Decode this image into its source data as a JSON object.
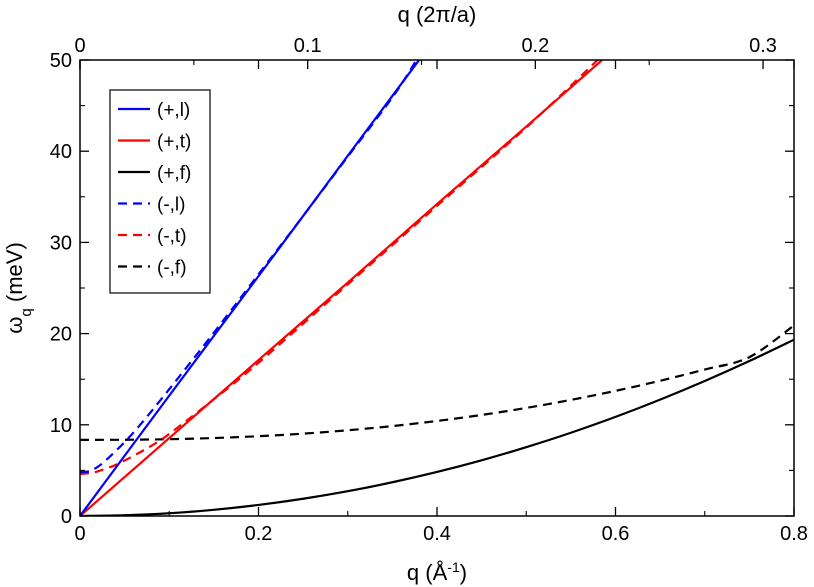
{
  "chart_data": {
    "type": "line",
    "title": "",
    "xlabel": "q  (Å",
    "xlabel_sup": "-1",
    "xlabel_close": ")",
    "ylabel": "ω",
    "ylabel_sub": "q",
    "ylabel_unit": "  (meV)",
    "top_xlabel": "q  (2π/a)",
    "xlim": [
      0,
      0.8
    ],
    "ylim": [
      0,
      50
    ],
    "top_xlim": [
      0,
      0.3136
    ],
    "x_ticks": [
      0,
      0.2,
      0.4,
      0.6,
      0.8
    ],
    "x_tick_labels": [
      "0",
      "0.2",
      "0.4",
      "0.6",
      "0.8"
    ],
    "y_ticks": [
      0,
      10,
      20,
      30,
      40,
      50
    ],
    "y_tick_labels": [
      "0",
      "10",
      "20",
      "30",
      "40",
      "50"
    ],
    "top_x_ticks": [
      0,
      0.1,
      0.2,
      0.3
    ],
    "top_x_tick_labels": [
      "0",
      "0.1",
      "0.2",
      "0.3"
    ],
    "grid": false,
    "legend_position": "top-left",
    "series": [
      {
        "name": "(+,l)",
        "color": "#0000ff",
        "style": "solid",
        "x": [
          0,
          0.1,
          0.2,
          0.3,
          0.38
        ],
        "y": [
          0,
          13.2,
          26.3,
          39.5,
          50
        ]
      },
      {
        "name": "(+,t)",
        "color": "#ff0000",
        "style": "solid",
        "x": [
          0,
          0.1,
          0.2,
          0.3,
          0.4,
          0.5,
          0.585
        ],
        "y": [
          0,
          8.55,
          17.1,
          25.6,
          34.2,
          42.7,
          50
        ]
      },
      {
        "name": "(+,f)",
        "color": "#000000",
        "style": "solid",
        "x": [
          0,
          0.05,
          0.1,
          0.15,
          0.2,
          0.25,
          0.3,
          0.35,
          0.4,
          0.45,
          0.5,
          0.55,
          0.6,
          0.65,
          0.7,
          0.75,
          0.8
        ],
        "y": [
          0,
          0.08,
          0.3,
          0.68,
          1.21,
          1.89,
          2.72,
          3.7,
          4.83,
          6.11,
          7.55,
          9.13,
          10.87,
          12.76,
          14.8,
          16.99,
          19.33
        ]
      },
      {
        "name": "(-,l)",
        "color": "#0000ff",
        "style": "dashed",
        "x": [
          0,
          0.01,
          0.02,
          0.03,
          0.05,
          0.07,
          0.1,
          0.15,
          0.2,
          0.25,
          0.3,
          0.35,
          0.377
        ],
        "y": [
          4.8,
          4.9,
          5.4,
          6.2,
          8.1,
          10.3,
          13.9,
          20.1,
          26.5,
          32.9,
          39.4,
          45.9,
          50
        ]
      },
      {
        "name": "(-,t)",
        "color": "#ff0000",
        "style": "dashed",
        "x": [
          0,
          0.01,
          0.02,
          0.04,
          0.06,
          0.08,
          0.1,
          0.15,
          0.2,
          0.3,
          0.4,
          0.5,
          0.58
        ],
        "y": [
          4.6,
          4.7,
          4.9,
          5.6,
          6.6,
          7.7,
          9.0,
          12.8,
          16.8,
          25.4,
          34.0,
          42.6,
          50
        ]
      },
      {
        "name": "(-,f)",
        "color": "#000000",
        "style": "dashed",
        "x": [
          0,
          0.05,
          0.1,
          0.15,
          0.2,
          0.25,
          0.3,
          0.35,
          0.4,
          0.45,
          0.5,
          0.55,
          0.6,
          0.65,
          0.7,
          0.75,
          0.8
        ],
        "y": [
          8.35,
          8.36,
          8.42,
          8.55,
          8.75,
          9.03,
          9.4,
          9.86,
          10.42,
          11.08,
          11.85,
          12.73,
          13.72,
          14.83,
          16.06,
          17.42,
          20.9
        ]
      }
    ]
  }
}
